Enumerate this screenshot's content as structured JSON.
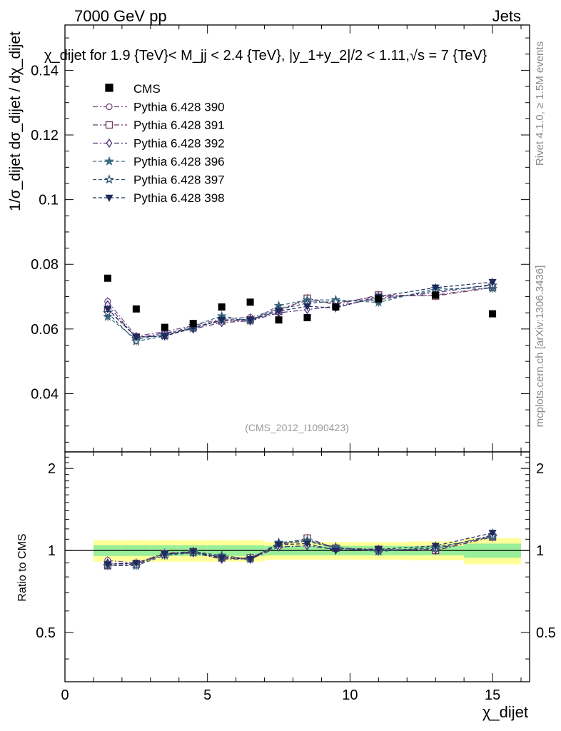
{
  "header": {
    "left": "7000 GeV pp",
    "right": "Jets",
    "plot_title": "χ_dijet for 1.9 {TeV}< M_jj < 2.4 {TeV}, |y_1+y_2|/2 < 1.11,√s = 7 {TeV}",
    "side_rivet": "Rivet 4.1.0, ≥ 1.5M events",
    "side_mcplots": "mcplots.cern.ch [arXiv:1306.3436]",
    "analysis_id": "(CMS_2012_I1090423)"
  },
  "chart_data": {
    "type": "scatter",
    "title": "χ_dijet for 1.9 {TeV}< M_jj < 2.4 {TeV}, |y_1+y_2|/2 < 1.11,√s = 7 {TeV}",
    "xlabel": "χ_dijet",
    "ylabel": "1/σ_dijet dσ_dijet / dχ_dijet",
    "ratio_ylabel": "Ratio to CMS",
    "xlim": [
      0,
      16.3
    ],
    "ylim": [
      0.022,
      0.154
    ],
    "ratio_ylim": [
      0.33,
      2.3
    ],
    "x_ticks": [
      0,
      5,
      10,
      15
    ],
    "y_ticks": [
      0.04,
      0.06,
      0.08,
      0.1,
      0.12,
      0.14
    ],
    "ratio_ticks": [
      0.5,
      1,
      2
    ],
    "x": [
      1.5,
      2.5,
      3.5,
      4.5,
      5.5,
      6.5,
      7.5,
      8.5,
      9.5,
      11,
      13,
      15
    ],
    "bin_edges": [
      1,
      2,
      3,
      4,
      5,
      6,
      7,
      8,
      9,
      10,
      12,
      14,
      16
    ],
    "reference": {
      "name": "CMS",
      "values": [
        0.0757,
        0.0662,
        0.0605,
        0.0617,
        0.0668,
        0.0683,
        0.0628,
        0.0635,
        0.0668,
        0.0693,
        0.0705,
        0.0647
      ],
      "ratio_band_stat": [
        0.045,
        0.045,
        0.045,
        0.045,
        0.045,
        0.045,
        0.04,
        0.04,
        0.04,
        0.04,
        0.04,
        0.06
      ],
      "ratio_band_total": [
        0.09,
        0.09,
        0.09,
        0.09,
        0.09,
        0.09,
        0.075,
        0.075,
        0.075,
        0.075,
        0.08,
        0.11
      ]
    },
    "series": [
      {
        "name": "Pythia 6.428 390",
        "color": "#7a4e8c",
        "dash": "7,3,2,3",
        "marker": "circle-open",
        "values": [
          0.0685,
          0.0578,
          0.0592,
          0.061,
          0.0632,
          0.0636,
          0.0662,
          0.0688,
          0.068,
          0.07,
          0.0705,
          0.073
        ],
        "ratio": [
          0.92,
          0.9,
          0.98,
          0.99,
          0.95,
          0.93,
          1.05,
          1.09,
          1.02,
          1.01,
          1.0,
          1.13
        ]
      },
      {
        "name": "Pythia 6.428 391",
        "color": "#6b3a5a",
        "dash": "7,3,2,3",
        "marker": "square-open",
        "values": [
          0.066,
          0.0575,
          0.058,
          0.0605,
          0.0625,
          0.0628,
          0.0655,
          0.0695,
          0.0675,
          0.0705,
          0.0702,
          0.0728
        ],
        "ratio": [
          0.88,
          0.89,
          0.97,
          0.99,
          0.94,
          0.94,
          1.05,
          1.11,
          1.02,
          1.01,
          1.0,
          1.12
        ]
      },
      {
        "name": "Pythia 6.428 392",
        "color": "#4a2c7a",
        "dash": "7,3,2,3",
        "marker": "diamond-open",
        "values": [
          0.0675,
          0.0572,
          0.0588,
          0.06,
          0.062,
          0.0625,
          0.065,
          0.066,
          0.067,
          0.0695,
          0.0712,
          0.0738
        ],
        "ratio": [
          0.9,
          0.89,
          0.97,
          0.98,
          0.93,
          0.93,
          1.03,
          1.04,
          1.01,
          1.0,
          1.01,
          1.14
        ]
      },
      {
        "name": "Pythia 6.428 396",
        "color": "#3d6b80",
        "dash": "5,3",
        "marker": "star-filled",
        "values": [
          0.0638,
          0.0568,
          0.0582,
          0.061,
          0.064,
          0.0625,
          0.0672,
          0.069,
          0.069,
          0.0682,
          0.0725,
          0.0725
        ],
        "ratio": [
          0.88,
          0.88,
          0.96,
          0.99,
          0.96,
          0.93,
          1.07,
          1.09,
          1.03,
          0.99,
          1.03,
          1.12
        ]
      },
      {
        "name": "Pythia 6.428 397",
        "color": "#2e5570",
        "dash": "5,3",
        "marker": "star-open",
        "values": [
          0.065,
          0.0562,
          0.0578,
          0.0602,
          0.0628,
          0.063,
          0.066,
          0.068,
          0.0685,
          0.069,
          0.0718,
          0.0735
        ],
        "ratio": [
          0.88,
          0.88,
          0.96,
          0.98,
          0.94,
          0.93,
          1.06,
          1.08,
          1.02,
          1.0,
          1.02,
          1.13
        ]
      },
      {
        "name": "Pythia 6.428 398",
        "color": "#1f2a5e",
        "dash": "5,3",
        "marker": "triangle-down-filled",
        "values": [
          0.0662,
          0.0575,
          0.0578,
          0.0605,
          0.0628,
          0.0628,
          0.0655,
          0.067,
          0.0665,
          0.07,
          0.0728,
          0.0745
        ],
        "ratio": [
          0.89,
          0.9,
          0.97,
          0.99,
          0.94,
          0.93,
          1.05,
          1.06,
          1.0,
          1.01,
          1.04,
          1.16
        ]
      }
    ]
  }
}
